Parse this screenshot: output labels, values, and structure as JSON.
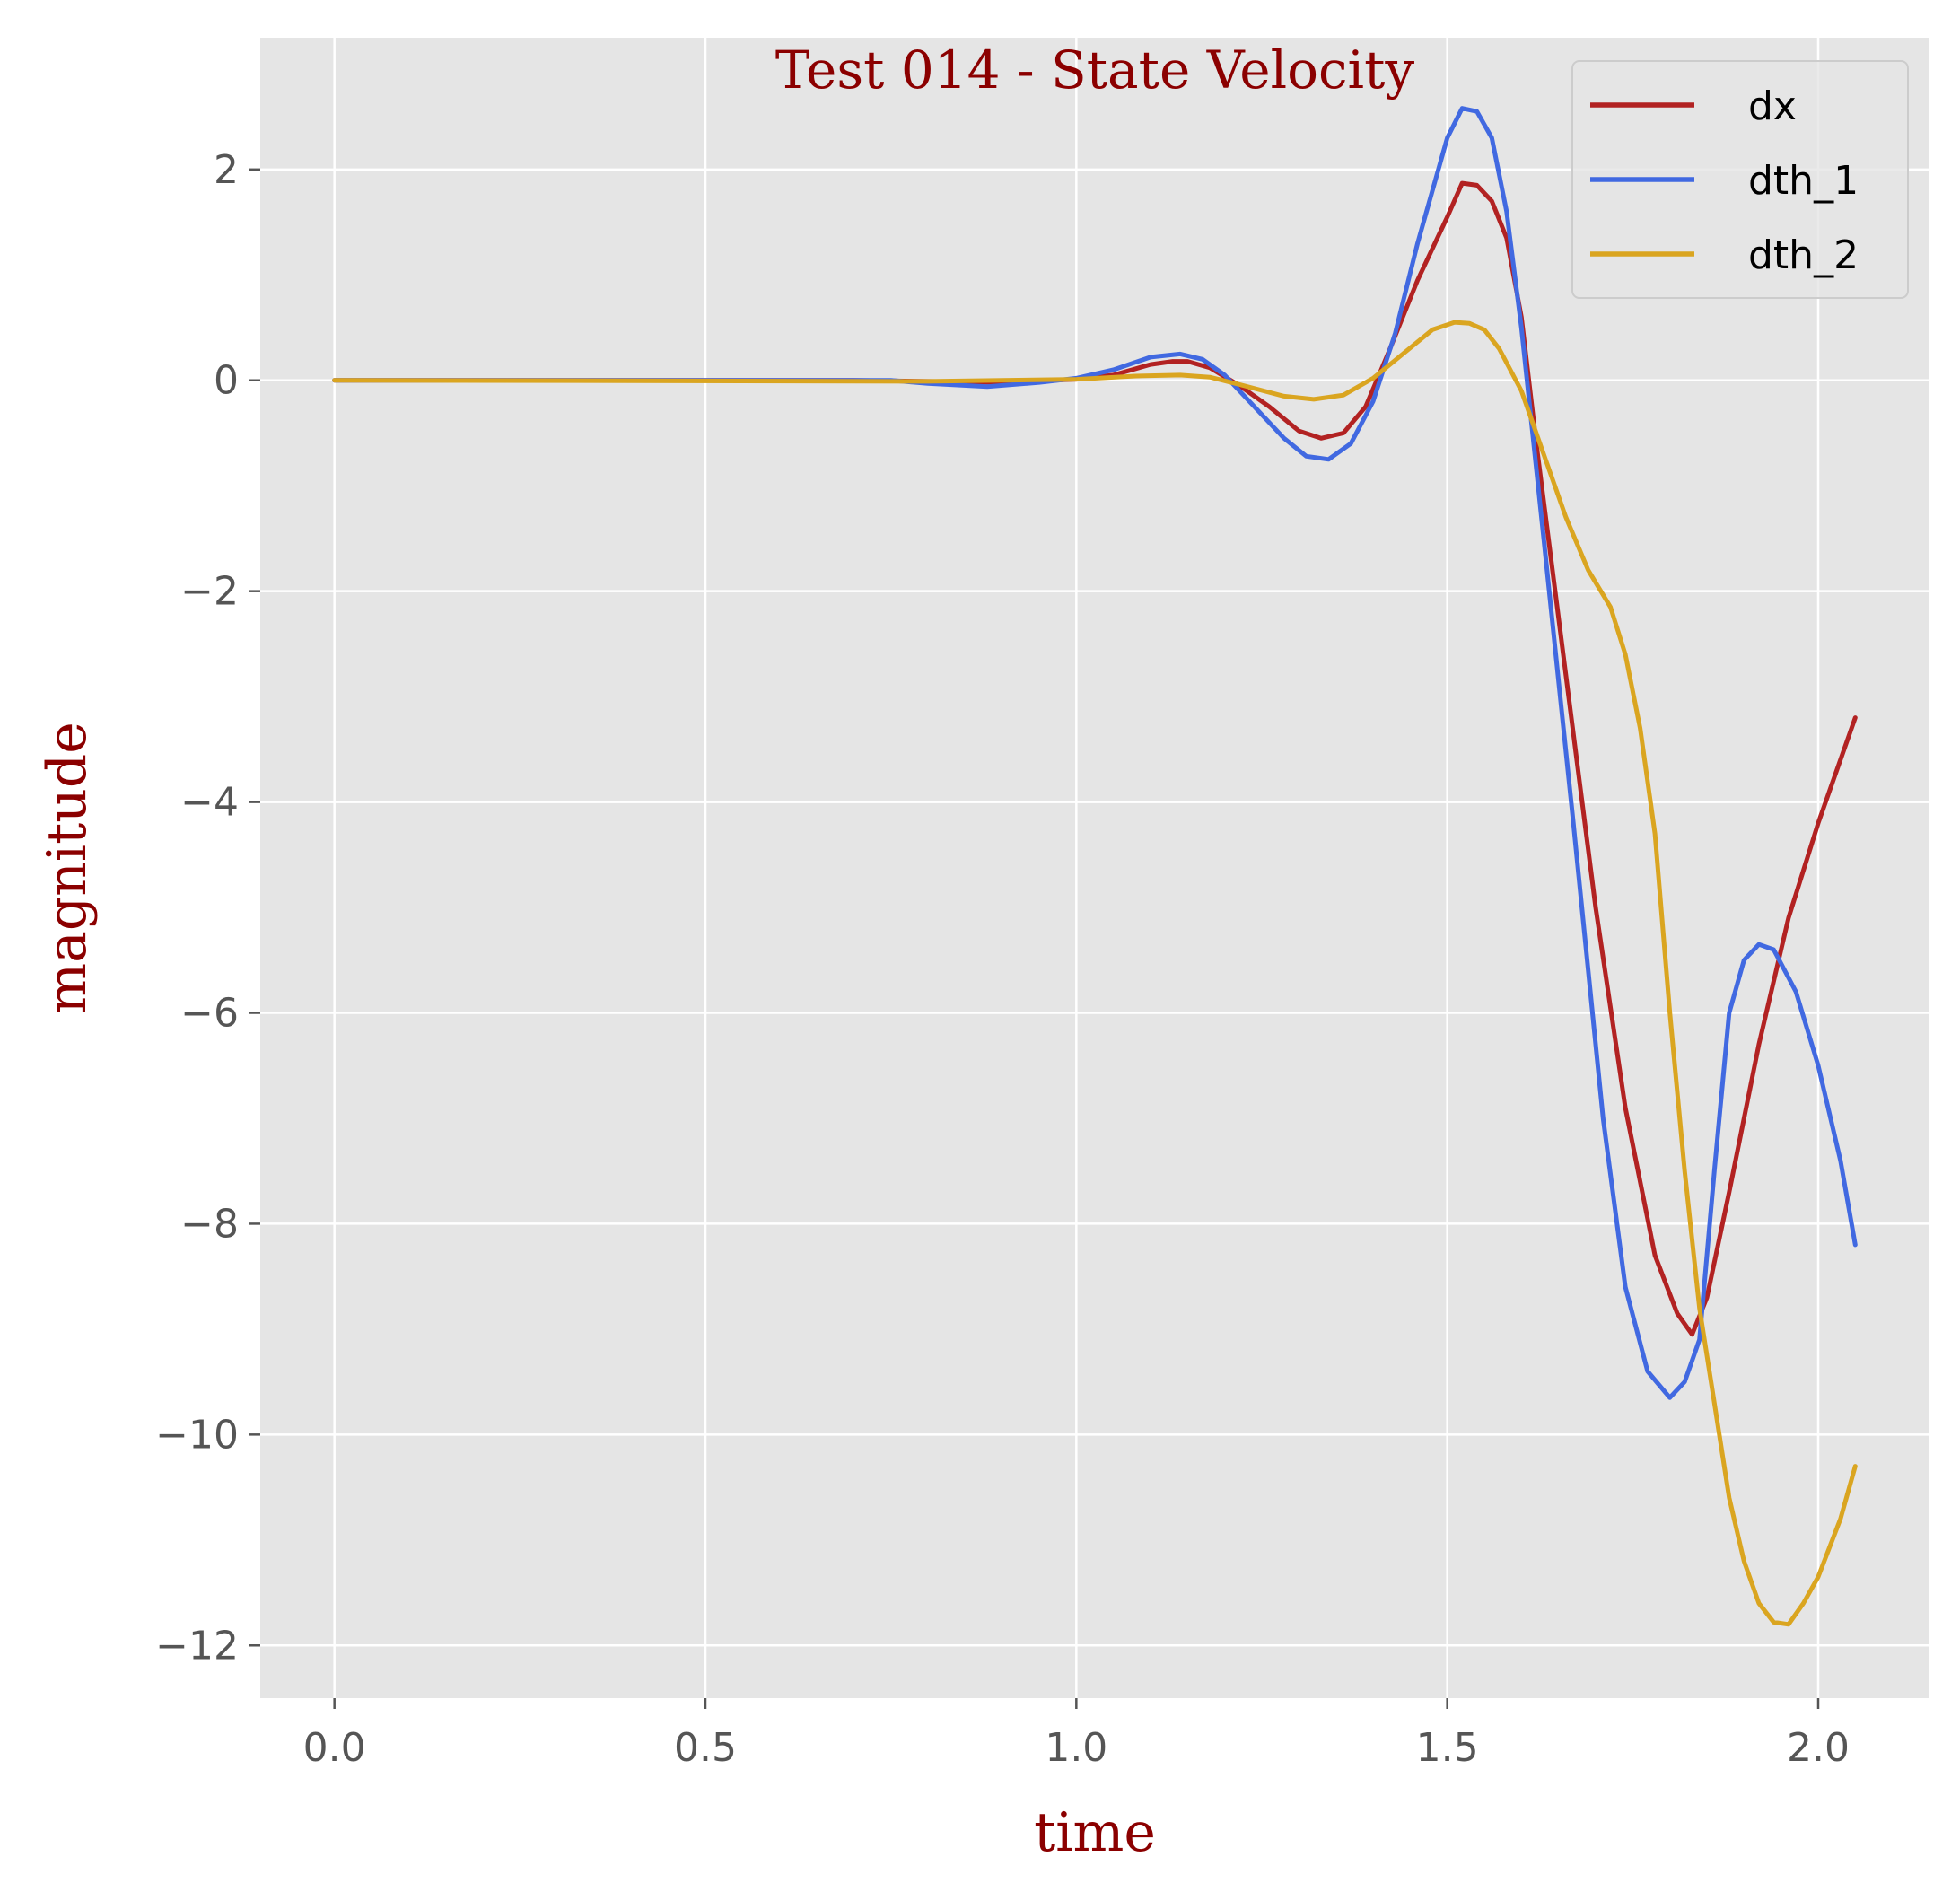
{
  "chart_data": {
    "type": "line",
    "title": "Test 014 - State Velocity",
    "xlabel": "time",
    "ylabel": "magnitude",
    "xlim": [
      -0.1,
      2.15
    ],
    "ylim": [
      -12.5,
      3.25
    ],
    "xticks": [
      0.0,
      0.5,
      1.0,
      1.5,
      2.0
    ],
    "xtick_labels": [
      "0.0",
      "0.5",
      "1.0",
      "1.5",
      "2.0"
    ],
    "yticks": [
      2,
      0,
      -2,
      -4,
      -6,
      -8,
      -10,
      -12
    ],
    "ytick_labels": [
      "2",
      "0",
      "−2",
      "−4",
      "−6",
      "−8",
      "−10",
      "−12"
    ],
    "grid": true,
    "legend_position": "top-right",
    "background": "#e5e5e5",
    "series": [
      {
        "name": "dx",
        "color": "#b22222",
        "points": [
          [
            0.0,
            0
          ],
          [
            0.7,
            0
          ],
          [
            0.8,
            -0.01
          ],
          [
            0.9,
            -0.02
          ],
          [
            1.0,
            0.01
          ],
          [
            1.05,
            0.05
          ],
          [
            1.1,
            0.15
          ],
          [
            1.13,
            0.18
          ],
          [
            1.15,
            0.18
          ],
          [
            1.18,
            0.12
          ],
          [
            1.22,
            -0.05
          ],
          [
            1.26,
            -0.25
          ],
          [
            1.3,
            -0.48
          ],
          [
            1.33,
            -0.55
          ],
          [
            1.36,
            -0.5
          ],
          [
            1.39,
            -0.25
          ],
          [
            1.42,
            0.25
          ],
          [
            1.46,
            0.95
          ],
          [
            1.5,
            1.55
          ],
          [
            1.52,
            1.87
          ],
          [
            1.54,
            1.85
          ],
          [
            1.56,
            1.7
          ],
          [
            1.58,
            1.35
          ],
          [
            1.6,
            0.6
          ],
          [
            1.62,
            -0.6
          ],
          [
            1.66,
            -2.8
          ],
          [
            1.7,
            -5.0
          ],
          [
            1.74,
            -6.9
          ],
          [
            1.78,
            -8.3
          ],
          [
            1.81,
            -8.85
          ],
          [
            1.83,
            -9.05
          ],
          [
            1.85,
            -8.7
          ],
          [
            1.88,
            -7.7
          ],
          [
            1.92,
            -6.3
          ],
          [
            1.96,
            -5.1
          ],
          [
            2.0,
            -4.2
          ],
          [
            2.05,
            -3.2
          ]
        ]
      },
      {
        "name": "dth_1",
        "color": "#4169e1",
        "points": [
          [
            0.0,
            0
          ],
          [
            0.75,
            0
          ],
          [
            0.8,
            -0.03
          ],
          [
            0.88,
            -0.06
          ],
          [
            0.95,
            -0.02
          ],
          [
            1.0,
            0.02
          ],
          [
            1.05,
            0.1
          ],
          [
            1.1,
            0.22
          ],
          [
            1.14,
            0.25
          ],
          [
            1.17,
            0.2
          ],
          [
            1.2,
            0.05
          ],
          [
            1.24,
            -0.25
          ],
          [
            1.28,
            -0.55
          ],
          [
            1.31,
            -0.72
          ],
          [
            1.34,
            -0.75
          ],
          [
            1.37,
            -0.6
          ],
          [
            1.4,
            -0.2
          ],
          [
            1.43,
            0.45
          ],
          [
            1.46,
            1.3
          ],
          [
            1.5,
            2.3
          ],
          [
            1.52,
            2.58
          ],
          [
            1.54,
            2.55
          ],
          [
            1.56,
            2.3
          ],
          [
            1.58,
            1.6
          ],
          [
            1.6,
            0.5
          ],
          [
            1.63,
            -1.5
          ],
          [
            1.67,
            -4.2
          ],
          [
            1.71,
            -7.0
          ],
          [
            1.74,
            -8.6
          ],
          [
            1.77,
            -9.4
          ],
          [
            1.8,
            -9.65
          ],
          [
            1.82,
            -9.5
          ],
          [
            1.84,
            -9.1
          ],
          [
            1.86,
            -7.5
          ],
          [
            1.88,
            -6.0
          ],
          [
            1.9,
            -5.5
          ],
          [
            1.92,
            -5.35
          ],
          [
            1.94,
            -5.4
          ],
          [
            1.97,
            -5.8
          ],
          [
            2.0,
            -6.5
          ],
          [
            2.03,
            -7.4
          ],
          [
            2.05,
            -8.2
          ]
        ]
      },
      {
        "name": "dth_2",
        "color": "#daa520",
        "points": [
          [
            0.0,
            0
          ],
          [
            0.8,
            -0.01
          ],
          [
            1.0,
            0.01
          ],
          [
            1.08,
            0.04
          ],
          [
            1.14,
            0.05
          ],
          [
            1.18,
            0.03
          ],
          [
            1.22,
            -0.04
          ],
          [
            1.28,
            -0.15
          ],
          [
            1.32,
            -0.18
          ],
          [
            1.36,
            -0.14
          ],
          [
            1.4,
            0.02
          ],
          [
            1.44,
            0.25
          ],
          [
            1.48,
            0.48
          ],
          [
            1.51,
            0.55
          ],
          [
            1.53,
            0.54
          ],
          [
            1.55,
            0.48
          ],
          [
            1.57,
            0.3
          ],
          [
            1.6,
            -0.1
          ],
          [
            1.63,
            -0.7
          ],
          [
            1.66,
            -1.3
          ],
          [
            1.69,
            -1.8
          ],
          [
            1.72,
            -2.15
          ],
          [
            1.74,
            -2.6
          ],
          [
            1.76,
            -3.3
          ],
          [
            1.78,
            -4.3
          ],
          [
            1.8,
            -6.0
          ],
          [
            1.82,
            -7.5
          ],
          [
            1.84,
            -8.8
          ],
          [
            1.86,
            -9.7
          ],
          [
            1.88,
            -10.6
          ],
          [
            1.9,
            -11.2
          ],
          [
            1.92,
            -11.6
          ],
          [
            1.94,
            -11.78
          ],
          [
            1.96,
            -11.8
          ],
          [
            1.98,
            -11.6
          ],
          [
            2.0,
            -11.35
          ],
          [
            2.03,
            -10.8
          ],
          [
            2.05,
            -10.3
          ]
        ]
      }
    ]
  }
}
